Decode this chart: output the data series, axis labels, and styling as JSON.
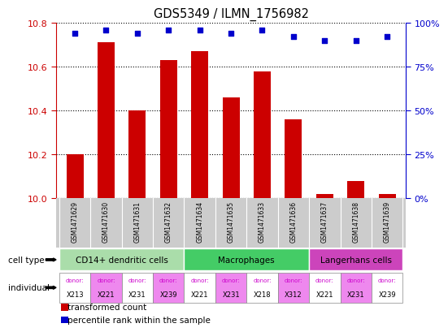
{
  "title": "GDS5349 / ILMN_1756982",
  "samples": [
    "GSM1471629",
    "GSM1471630",
    "GSM1471631",
    "GSM1471632",
    "GSM1471634",
    "GSM1471635",
    "GSM1471633",
    "GSM1471636",
    "GSM1471637",
    "GSM1471638",
    "GSM1471639"
  ],
  "transformed_count": [
    10.2,
    10.71,
    10.4,
    10.63,
    10.67,
    10.46,
    10.58,
    10.36,
    10.02,
    10.08,
    10.02
  ],
  "percentile_rank": [
    94,
    96,
    94,
    96,
    96,
    94,
    96,
    92,
    90,
    90,
    92
  ],
  "ylim_left": [
    10.0,
    10.8
  ],
  "ylim_right": [
    0,
    100
  ],
  "yticks_left": [
    10.0,
    10.2,
    10.4,
    10.6,
    10.8
  ],
  "yticks_right": [
    0,
    25,
    50,
    75,
    100
  ],
  "cell_types": [
    {
      "label": "CD14+ dendritic cells",
      "start": 0,
      "end": 4,
      "color": "#aaddaa"
    },
    {
      "label": "Macrophages",
      "start": 4,
      "end": 8,
      "color": "#44cc66"
    },
    {
      "label": "Langerhans cells",
      "start": 8,
      "end": 11,
      "color": "#cc44bb"
    }
  ],
  "donors": [
    "X213",
    "X221",
    "X231",
    "X239",
    "X221",
    "X231",
    "X218",
    "X312",
    "X221",
    "X231",
    "X239"
  ],
  "donor_colors": [
    "#ffffff",
    "#ee88ee",
    "#ffffff",
    "#ee88ee",
    "#ffffff",
    "#ee88ee",
    "#ffffff",
    "#ee88ee",
    "#ffffff",
    "#ee88ee",
    "#ffffff"
  ],
  "bar_color": "#cc0000",
  "dot_color": "#0000cc",
  "sample_bg": "#cccccc",
  "left_axis_color": "#cc0000",
  "right_axis_color": "#0000cc",
  "donor_text_color": "#cc00cc",
  "legend_square_size": 8
}
